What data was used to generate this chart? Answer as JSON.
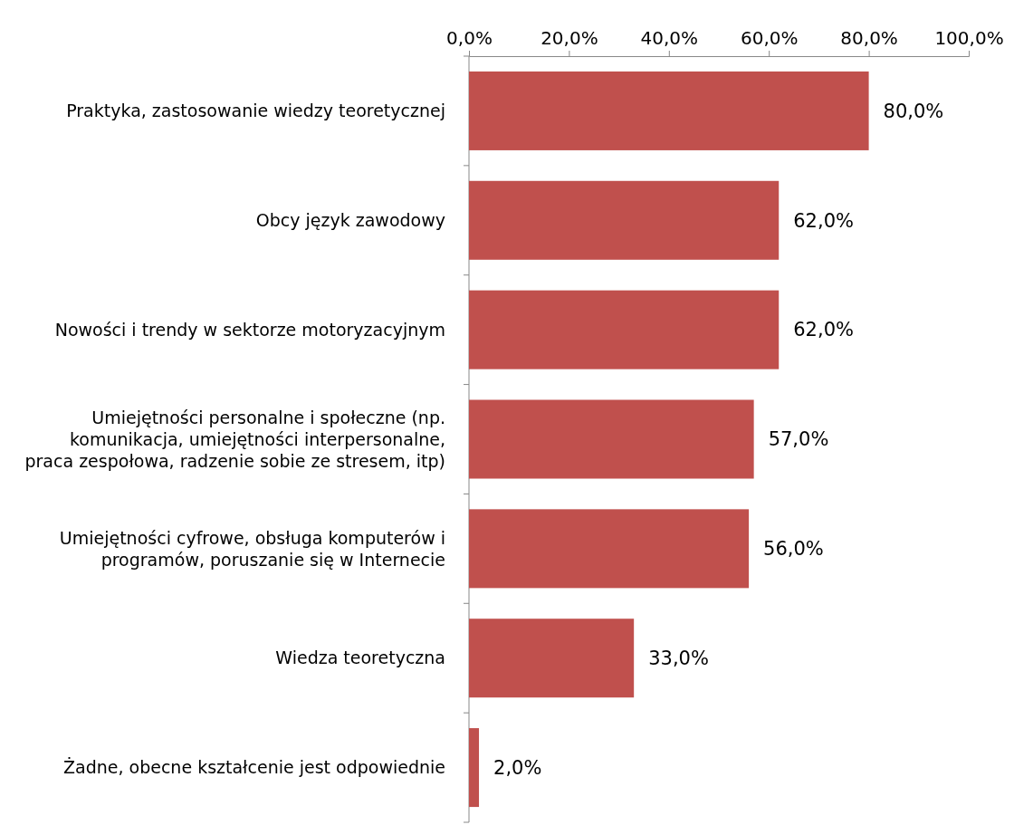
{
  "chart_data": {
    "type": "bar",
    "orientation": "horizontal",
    "categories": [
      "Praktyka, zastosowanie wiedzy teoretycznej",
      "Obcy język zawodowy",
      "Nowości i trendy w sektorze motoryzacyjnym",
      "Umiejętności personalne i społeczne (np. komunikacja, umiejętności interpersonalne, praca zespołowa, radzenie sobie ze stresem, itp)",
      "Umiejętności cyfrowe, obsługa komputerów i programów, poruszanie się w Internecie",
      "Wiedza teoretyczna",
      "Żadne, obecne kształcenie jest odpowiednie"
    ],
    "values": [
      80,
      62,
      62,
      57,
      56,
      33,
      2
    ],
    "value_labels": [
      "80,0%",
      "62,0%",
      "62,0%",
      "57,0%",
      "56,0%",
      "33,0%",
      "2,0%"
    ],
    "color": "#c0504d",
    "xlim": [
      0,
      100
    ],
    "xticks": [
      {
        "value": 0,
        "label": "0,0%"
      },
      {
        "value": 20,
        "label": "20,0%"
      },
      {
        "value": 40,
        "label": "40,0%"
      },
      {
        "value": 60,
        "label": "60,0%"
      },
      {
        "value": 80,
        "label": "80,0%"
      },
      {
        "value": 100,
        "label": "100,0%"
      }
    ],
    "grid": false
  }
}
